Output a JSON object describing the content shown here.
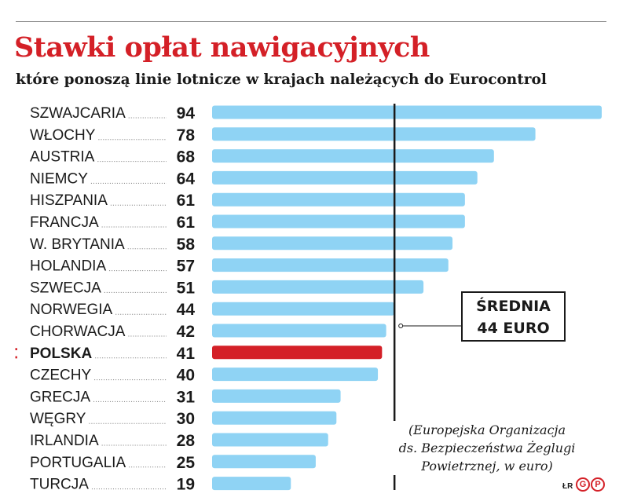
{
  "header": {
    "title": "Stawki opłat nawigacyjnych",
    "subtitle": "które ponoszą linie lotnicze w krajach należących do Eurocontrol"
  },
  "average": {
    "line1": "ŚREDNIA",
    "line2": "44 EURO",
    "value": 44
  },
  "source": {
    "line1": "(Europejska Organizacja",
    "line2": "ds. Bezpieczeństwa Żeglugi",
    "line3": "Powietrznej, w euro)"
  },
  "footer": {
    "author": "ŁR",
    "logo": "GP"
  },
  "colors": {
    "bar": "#8fd3f4",
    "highlight": "#d42027",
    "title": "#d42027",
    "text": "#1a1a1a"
  },
  "chart_data": {
    "type": "bar",
    "orientation": "horizontal",
    "categories": [
      "SZWAJCARIA",
      "WŁOCHY",
      "AUSTRIA",
      "NIEMCY",
      "HISZPANIA",
      "FRANCJA",
      "W. BRYTANIA",
      "HOLANDIA",
      "SZWECJA",
      "NORWEGIA",
      "CHORWACJA",
      "POLSKA",
      "CZECHY",
      "GRECJA",
      "WĘGRY",
      "IRLANDIA",
      "PORTUGALIA",
      "TURCJA"
    ],
    "values": [
      94,
      78,
      68,
      64,
      61,
      61,
      58,
      57,
      51,
      44,
      42,
      41,
      40,
      31,
      30,
      28,
      25,
      19
    ],
    "highlight": "POLSKA",
    "reference_line": 44,
    "xlim": [
      0,
      94
    ],
    "grid": false,
    "legend": "none"
  }
}
